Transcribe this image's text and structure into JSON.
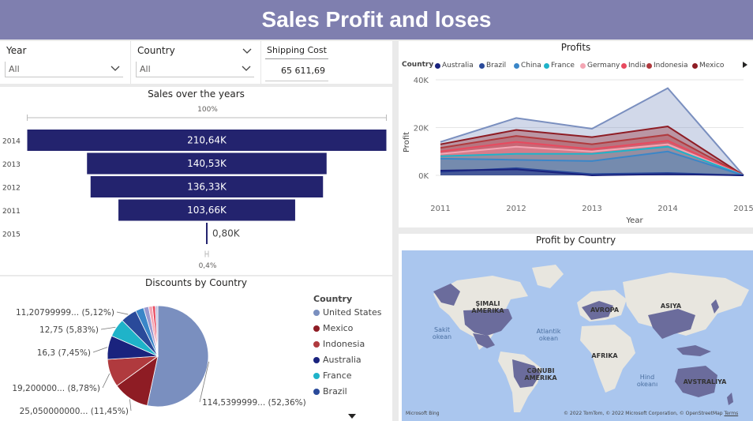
{
  "header": {
    "title": "Sales Profit and loses"
  },
  "slicers": {
    "year": {
      "title": "Year",
      "value": "All"
    },
    "country": {
      "title": "Country",
      "value": "All"
    }
  },
  "card": {
    "title": "Shipping Cost",
    "value": "65 611,69"
  },
  "funnel": {
    "title": "Sales over the years",
    "top_pct": "100%",
    "bottom_pct": "0,4%",
    "bar_color": "#23236e",
    "rows": [
      {
        "year": "2014",
        "label": "210,64K",
        "value": 210.64
      },
      {
        "year": "2013",
        "label": "140,53K",
        "value": 140.53
      },
      {
        "year": "2012",
        "label": "136,33K",
        "value": 136.33
      },
      {
        "year": "2011",
        "label": "103,66K",
        "value": 103.66
      },
      {
        "year": "2015",
        "label": "0,80K",
        "value": 0.8
      }
    ]
  },
  "pie": {
    "title": "Discounts by Country",
    "legend_title": "Country",
    "legend": [
      {
        "name": "United States",
        "color": "#7a8fbf"
      },
      {
        "name": "Mexico",
        "color": "#8e1c24"
      },
      {
        "name": "Indonesia",
        "color": "#b03a3e"
      },
      {
        "name": "Australia",
        "color": "#1a237e"
      },
      {
        "name": "France",
        "color": "#1fb3c9"
      },
      {
        "name": "Brazil",
        "color": "#2a4a9a"
      }
    ],
    "labels": [
      "11,20799999... (5,12%)",
      "12,75 (5,83%)",
      "16,3 (7,45%)",
      "19,200000... (8,78%)",
      "25,050000000... (11,45%)",
      "114,5399999... (52,36%)"
    ]
  },
  "profits": {
    "title": "Profits",
    "legend_title": "Country",
    "legend": [
      {
        "name": "Australia",
        "color": "#1a237e"
      },
      {
        "name": "Brazil",
        "color": "#2a4a9a"
      },
      {
        "name": "China",
        "color": "#3a86c8"
      },
      {
        "name": "France",
        "color": "#1fb3c9"
      },
      {
        "name": "Germany",
        "color": "#f4a6b4"
      },
      {
        "name": "India",
        "color": "#e84a5f"
      },
      {
        "name": "Indonesia",
        "color": "#b03a3e"
      },
      {
        "name": "Mexico",
        "color": "#8e1c24"
      }
    ],
    "y_ticks": [
      "40K",
      "20K",
      "0K"
    ],
    "x_ticks": [
      "2011",
      "2012",
      "2013",
      "2014",
      "2015"
    ],
    "ylabel": "Profit",
    "xlabel": "Year"
  },
  "chart_data": {
    "type": "area",
    "title": "Profits",
    "x": [
      2011,
      2012,
      2013,
      2014,
      2015
    ],
    "xlabel": "Year",
    "ylabel": "Profit",
    "ylim": [
      0,
      40000
    ],
    "series": [
      {
        "name": "Australia",
        "values": [
          2000,
          2500,
          0,
          500,
          0
        ]
      },
      {
        "name": "Brazil",
        "values": [
          1500,
          3000,
          500,
          1000,
          0
        ]
      },
      {
        "name": "China",
        "values": [
          7000,
          6500,
          6000,
          10000,
          0
        ]
      },
      {
        "name": "France",
        "values": [
          8000,
          9000,
          9000,
          12000,
          0
        ]
      },
      {
        "name": "Germany",
        "values": [
          9000,
          12000,
          10000,
          13000,
          0
        ]
      },
      {
        "name": "India",
        "values": [
          10000,
          14000,
          11000,
          14500,
          0
        ]
      },
      {
        "name": "Indonesia",
        "values": [
          11500,
          16500,
          13000,
          17000,
          0
        ]
      },
      {
        "name": "Mexico",
        "values": [
          13000,
          19000,
          16000,
          20500,
          0
        ]
      },
      {
        "name": "United States",
        "values": [
          14000,
          24000,
          19500,
          36500,
          0
        ]
      }
    ]
  },
  "map": {
    "title": "Profit by Country",
    "labels": {
      "na": "ŞIMALI\nAMERIKA",
      "eu": "AVROPA",
      "as": "ASIYA",
      "af": "AFRIKA",
      "sa": "CƏNUBI\nAMERIKA",
      "au": "AVSTRALIYA",
      "pac": "Sakit\nokean",
      "atl": "Atlantik\nokean",
      "ind": "Hind\nokeanı"
    },
    "bing": "Microsoft Bing",
    "copyright": "© 2022 TomTom, © 2022 Microsoft Corporation, © OpenStreetMap",
    "terms": "Terms"
  }
}
